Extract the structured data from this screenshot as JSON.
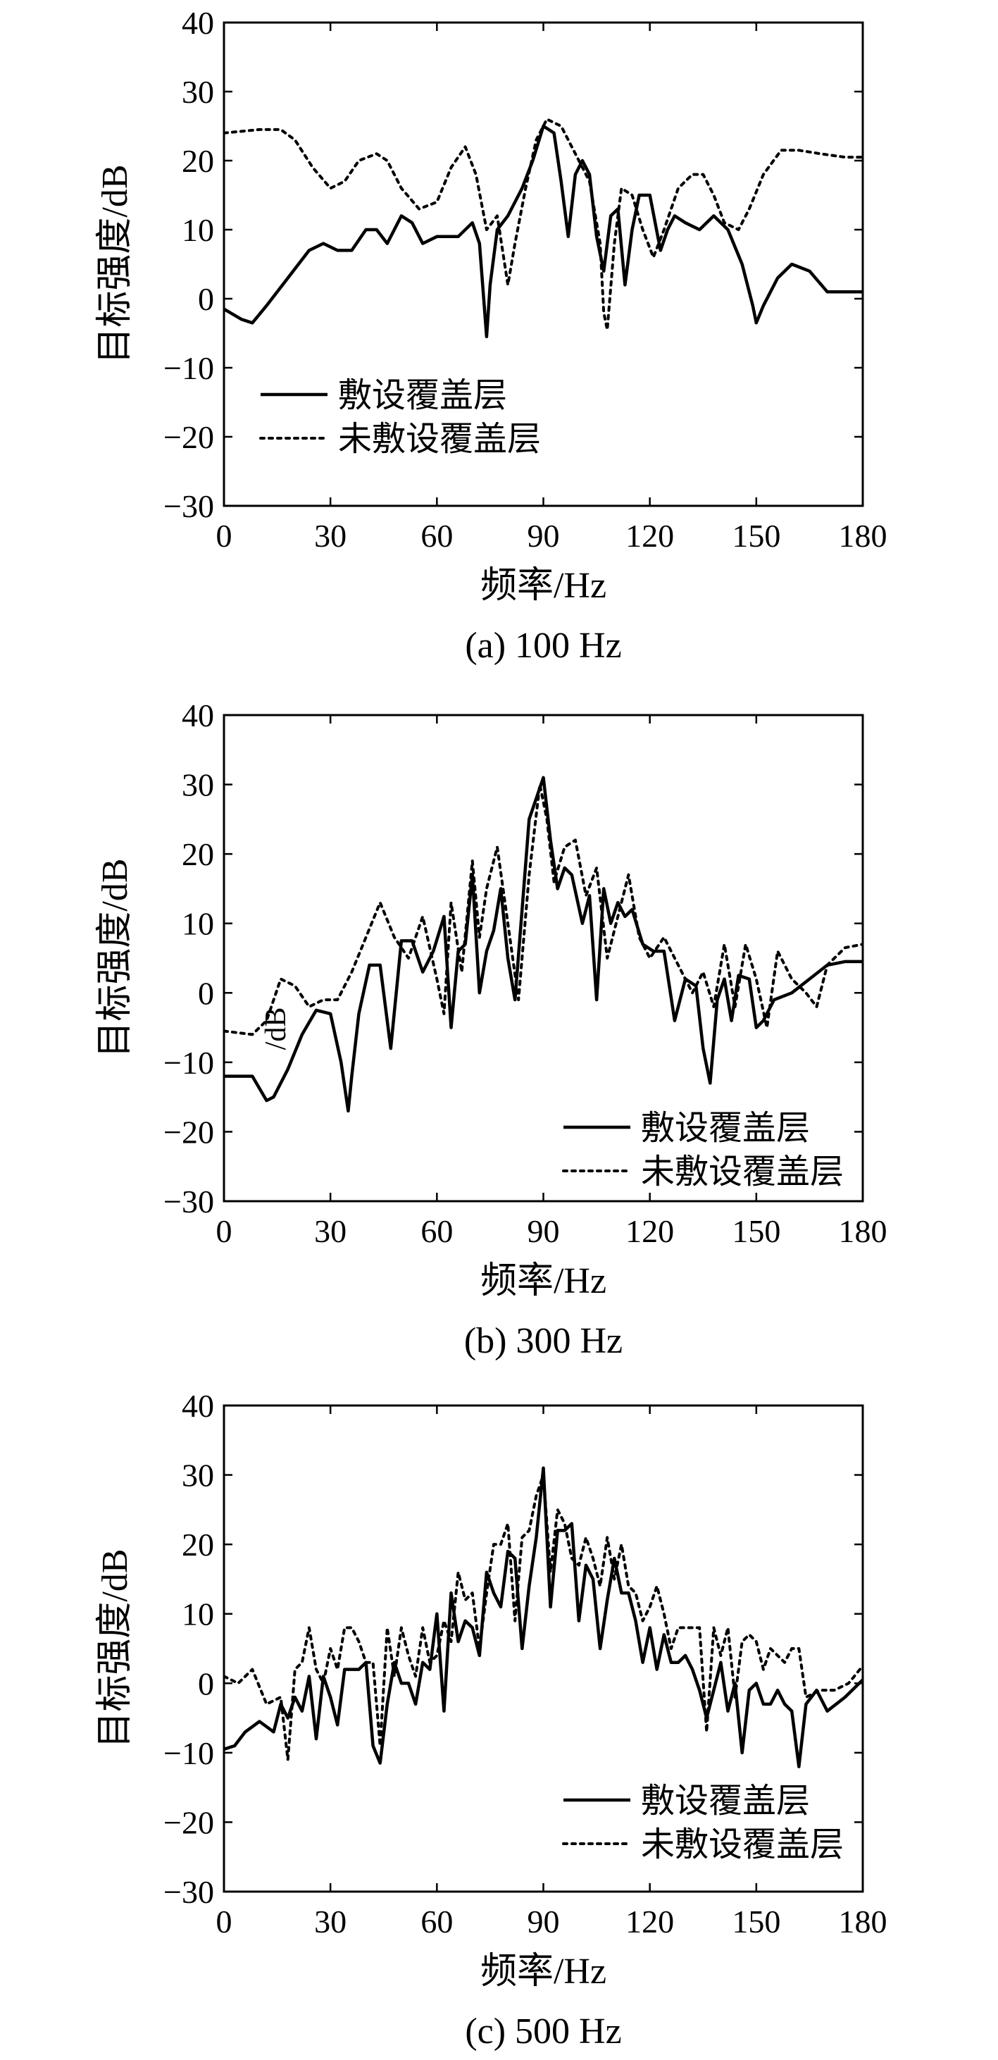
{
  "chart_data": [
    {
      "type": "line",
      "caption": "(a) 100 Hz",
      "xlabel": "频率/Hz",
      "ylabel": "目标强度/dB",
      "xlim": [
        0,
        180
      ],
      "ylim": [
        -30,
        40
      ],
      "xticks": [
        "0",
        "30",
        "60",
        "90",
        "120",
        "150",
        "180"
      ],
      "yticks": [
        "−30",
        "−20",
        "−10",
        "0",
        "10",
        "20",
        "30",
        "40"
      ],
      "legend_position": "bottom-left",
      "series": [
        {
          "name": "敷设覆盖层",
          "style": "solid",
          "x": [
            0,
            5,
            8,
            12,
            18,
            24,
            28,
            32,
            36,
            40,
            43,
            46,
            50,
            53,
            56,
            60,
            62,
            66,
            70,
            72,
            74,
            75,
            77,
            80,
            84,
            87,
            90,
            93,
            95,
            97,
            99,
            101,
            103,
            105,
            107,
            109,
            111,
            113,
            115,
            117,
            120,
            123,
            125,
            127,
            130,
            134,
            138,
            142,
            146,
            149,
            150,
            152,
            156,
            160,
            165,
            170,
            175,
            180
          ],
          "y": [
            -1.5,
            -3,
            -3.5,
            -1,
            3,
            7,
            8,
            7,
            7,
            10,
            10,
            8,
            12,
            11,
            8,
            9,
            9,
            9,
            11,
            8,
            -5.5,
            2,
            10,
            12,
            16,
            20,
            25,
            24,
            17,
            9,
            18,
            20,
            18,
            9,
            4,
            12,
            13,
            2,
            10,
            15,
            15,
            7,
            10,
            12,
            11,
            10,
            12,
            10,
            5,
            -1,
            -3.5,
            -1,
            3,
            5,
            4,
            1,
            1,
            1
          ]
        },
        {
          "name": "未敷设覆盖层",
          "style": "dotted",
          "x": [
            0,
            10,
            16,
            20,
            25,
            30,
            34,
            38,
            43,
            46,
            50,
            55,
            60,
            64,
            68,
            71,
            74,
            77,
            80,
            82,
            85,
            88,
            91,
            95,
            99,
            103,
            106,
            107,
            108,
            110,
            112,
            115,
            118,
            121,
            124,
            128,
            132,
            135,
            138,
            141,
            145,
            148,
            152,
            157,
            162,
            168,
            175,
            180
          ],
          "y": [
            24,
            24.5,
            24.5,
            23,
            19,
            16,
            17,
            20,
            21,
            20,
            16,
            13,
            14,
            19,
            22,
            18,
            10,
            12,
            2,
            8,
            16,
            23,
            26,
            25,
            21,
            17,
            8,
            -2,
            -4.5,
            8,
            16,
            15,
            10,
            6,
            10,
            16,
            18,
            18,
            15,
            11,
            10,
            13,
            18,
            21.5,
            21.5,
            21,
            20.5,
            20.5
          ]
        }
      ]
    },
    {
      "type": "line",
      "caption": "(b) 300 Hz",
      "xlabel": "频率/Hz",
      "ylabel": "目标强度/dB",
      "stray_label": "/dB",
      "xlim": [
        0,
        180
      ],
      "ylim": [
        -30,
        40
      ],
      "xticks": [
        "0",
        "30",
        "60",
        "90",
        "120",
        "150",
        "180"
      ],
      "yticks": [
        "−30",
        "−20",
        "−10",
        "0",
        "10",
        "20",
        "30",
        "40"
      ],
      "legend_position": "bottom-right",
      "series": [
        {
          "name": "敷设覆盖层",
          "style": "solid",
          "x": [
            0,
            8,
            12,
            14,
            18,
            22,
            26,
            30,
            33,
            35,
            36,
            38,
            41,
            44,
            47,
            50,
            53,
            56,
            59,
            62,
            64,
            66,
            68,
            70,
            72,
            74,
            76,
            78,
            80,
            82,
            84,
            86,
            88,
            90,
            92,
            94,
            96,
            98,
            101,
            103,
            105,
            107,
            109,
            111,
            113,
            115,
            118,
            121,
            124,
            127,
            130,
            133,
            135,
            137,
            139,
            141,
            143,
            145,
            148,
            150,
            152,
            155,
            160,
            165,
            170,
            175,
            180
          ],
          "y": [
            -12,
            -12,
            -15.5,
            -15,
            -11,
            -6,
            -2.5,
            -3,
            -10,
            -17,
            -12,
            -3,
            4,
            4,
            -8,
            7.5,
            7.5,
            3,
            6,
            11,
            -5,
            6,
            7,
            17,
            0,
            6,
            9,
            15,
            5,
            -1,
            12,
            25,
            28,
            31,
            22,
            15,
            18,
            17,
            10,
            14,
            -1,
            15,
            10,
            13,
            11,
            12,
            7,
            6,
            6,
            -4,
            2,
            1,
            -8,
            -13,
            -1,
            2,
            -4,
            2.5,
            2,
            -5,
            -4,
            -1,
            0,
            2,
            4,
            4.5,
            4.5
          ]
        },
        {
          "name": "未敷设覆盖层",
          "style": "dotted",
          "x": [
            0,
            8,
            12,
            16,
            20,
            24,
            28,
            32,
            36,
            40,
            44,
            48,
            52,
            56,
            60,
            62,
            64,
            67,
            70,
            72,
            74,
            77,
            80,
            83,
            86,
            89,
            91,
            93,
            96,
            99,
            102,
            105,
            108,
            111,
            114,
            117,
            120,
            124,
            128,
            132,
            135,
            138,
            141,
            144,
            147,
            150,
            153,
            156,
            160,
            164,
            167,
            170,
            175,
            180
          ],
          "y": [
            -5.5,
            -6,
            -4,
            2,
            1,
            -2,
            -1,
            -1,
            3,
            8,
            13,
            8,
            5,
            11,
            2,
            -3,
            13,
            3,
            19,
            8,
            15,
            21,
            10,
            -1,
            17,
            30,
            25,
            16,
            21,
            22,
            14,
            18,
            5,
            11,
            17,
            8,
            5,
            8,
            4,
            0,
            3,
            -2,
            7,
            -2,
            7,
            2,
            -5,
            6,
            2,
            0,
            -2,
            4,
            6.5,
            7
          ]
        }
      ]
    },
    {
      "type": "line",
      "caption": "(c) 500 Hz",
      "xlabel": "频率/Hz",
      "ylabel": "目标强度/dB",
      "xlim": [
        0,
        180
      ],
      "ylim": [
        -30,
        40
      ],
      "xticks": [
        "0",
        "30",
        "60",
        "90",
        "120",
        "150",
        "180"
      ],
      "yticks": [
        "−30",
        "−20",
        "−10",
        "0",
        "10",
        "20",
        "30",
        "40"
      ],
      "legend_position": "bottom-right",
      "series": [
        {
          "name": "敷设覆盖层",
          "style": "solid",
          "x": [
            0,
            3,
            6,
            10,
            14,
            16,
            18,
            20,
            22,
            24,
            26,
            28,
            30,
            32,
            34,
            36,
            38,
            40,
            42,
            44,
            46,
            48,
            50,
            52,
            54,
            56,
            58,
            60,
            62,
            64,
            66,
            68,
            70,
            72,
            74,
            76,
            78,
            80,
            82,
            84,
            86,
            88,
            90,
            92,
            94,
            96,
            98,
            100,
            102,
            104,
            106,
            108,
            110,
            112,
            114,
            116,
            118,
            120,
            122,
            124,
            126,
            128,
            130,
            132,
            134,
            136,
            138,
            140,
            142,
            144,
            146,
            148,
            150,
            152,
            154,
            156,
            158,
            160,
            162,
            164,
            167,
            170,
            175,
            180
          ],
          "y": [
            -9.5,
            -9,
            -7,
            -5.5,
            -7,
            -3,
            -5,
            -2,
            -4,
            1,
            -8,
            1,
            -2,
            -6,
            2,
            2,
            2,
            3,
            -9,
            -11.5,
            -3,
            3,
            0,
            0,
            -3,
            3,
            2,
            10,
            -4,
            13,
            6,
            9,
            8,
            4,
            16,
            13,
            11,
            19,
            18,
            5,
            14,
            21,
            31,
            11,
            22,
            22,
            23,
            9,
            17,
            15,
            5,
            12,
            18,
            13,
            13,
            9,
            3,
            8,
            2,
            7,
            3,
            3,
            4,
            2,
            -1,
            -5,
            -1,
            3,
            -4,
            0,
            -10,
            -1,
            0,
            -3,
            -3,
            -1,
            -3,
            -4,
            -12,
            -3,
            -1,
            -4,
            -2,
            0.5
          ]
        },
        {
          "name": "未敷设覆盖层",
          "style": "dotted",
          "x": [
            0,
            4,
            8,
            12,
            16,
            18,
            20,
            22,
            24,
            26,
            28,
            30,
            32,
            34,
            36,
            38,
            40,
            42,
            44,
            46,
            48,
            50,
            52,
            54,
            56,
            58,
            60,
            62,
            64,
            66,
            68,
            70,
            72,
            74,
            76,
            78,
            80,
            82,
            84,
            86,
            88,
            90,
            92,
            94,
            96,
            98,
            100,
            102,
            104,
            106,
            108,
            110,
            112,
            114,
            116,
            118,
            120,
            122,
            124,
            126,
            128,
            130,
            132,
            134,
            136,
            138,
            140,
            142,
            144,
            146,
            148,
            150,
            152,
            154,
            156,
            158,
            160,
            162,
            164,
            168,
            172,
            176,
            180
          ],
          "y": [
            1,
            0,
            2,
            -3,
            -2,
            -11,
            2,
            3,
            8,
            2,
            0,
            5,
            2,
            8,
            8,
            6,
            3,
            3,
            -9,
            8,
            1,
            8,
            4,
            1,
            8,
            3,
            4,
            9,
            6,
            16,
            12,
            13,
            5,
            13,
            20,
            20,
            23,
            9,
            21,
            22,
            27,
            30,
            16,
            25,
            23,
            18,
            17,
            21,
            18,
            14,
            21,
            15,
            20,
            14,
            13,
            9,
            11,
            14,
            10,
            5,
            8,
            8,
            8,
            8,
            -7,
            8,
            4,
            8,
            -2,
            6,
            7,
            6,
            2,
            5,
            4,
            3,
            5,
            5,
            -2,
            -1,
            -1,
            0,
            2.5
          ]
        }
      ]
    }
  ]
}
